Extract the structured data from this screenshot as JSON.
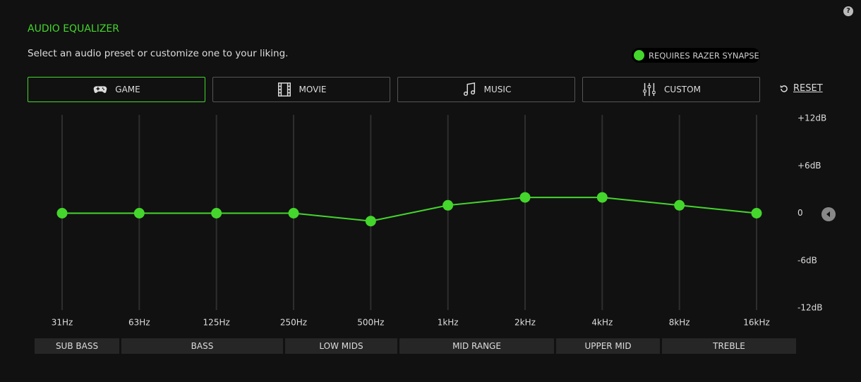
{
  "header": {
    "title": "AUDIO EQUALIZER",
    "subtitle": "Select an audio preset or customize one to your liking.",
    "badge": "REQUIRES RAZER SYNAPSE",
    "help": "?"
  },
  "presets": [
    "GAME",
    "MOVIE",
    "MUSIC",
    "CUSTOM"
  ],
  "reset": "RESET",
  "bands": [
    "SUB BASS",
    "BASS",
    "LOW MIDS",
    "MID RANGE",
    "UPPER MID",
    "TREBLE"
  ],
  "chart_data": {
    "type": "line",
    "categories": [
      "31Hz",
      "63Hz",
      "125Hz",
      "250Hz",
      "500Hz",
      "1kHz",
      "2kHz",
      "4kHz",
      "8kHz",
      "16kHz"
    ],
    "values": [
      0,
      0,
      0,
      0,
      -1,
      1,
      2,
      2,
      1,
      0
    ],
    "color": "#44d62c",
    "ylim": [
      -12,
      12
    ],
    "yticks": [
      {
        "value": 12,
        "label": "+12dB"
      },
      {
        "value": 6,
        "label": "+6dB"
      },
      0,
      {
        "value": -6,
        "label": "-6dB"
      },
      {
        "value": -12,
        "label": "-12dB"
      }
    ]
  }
}
